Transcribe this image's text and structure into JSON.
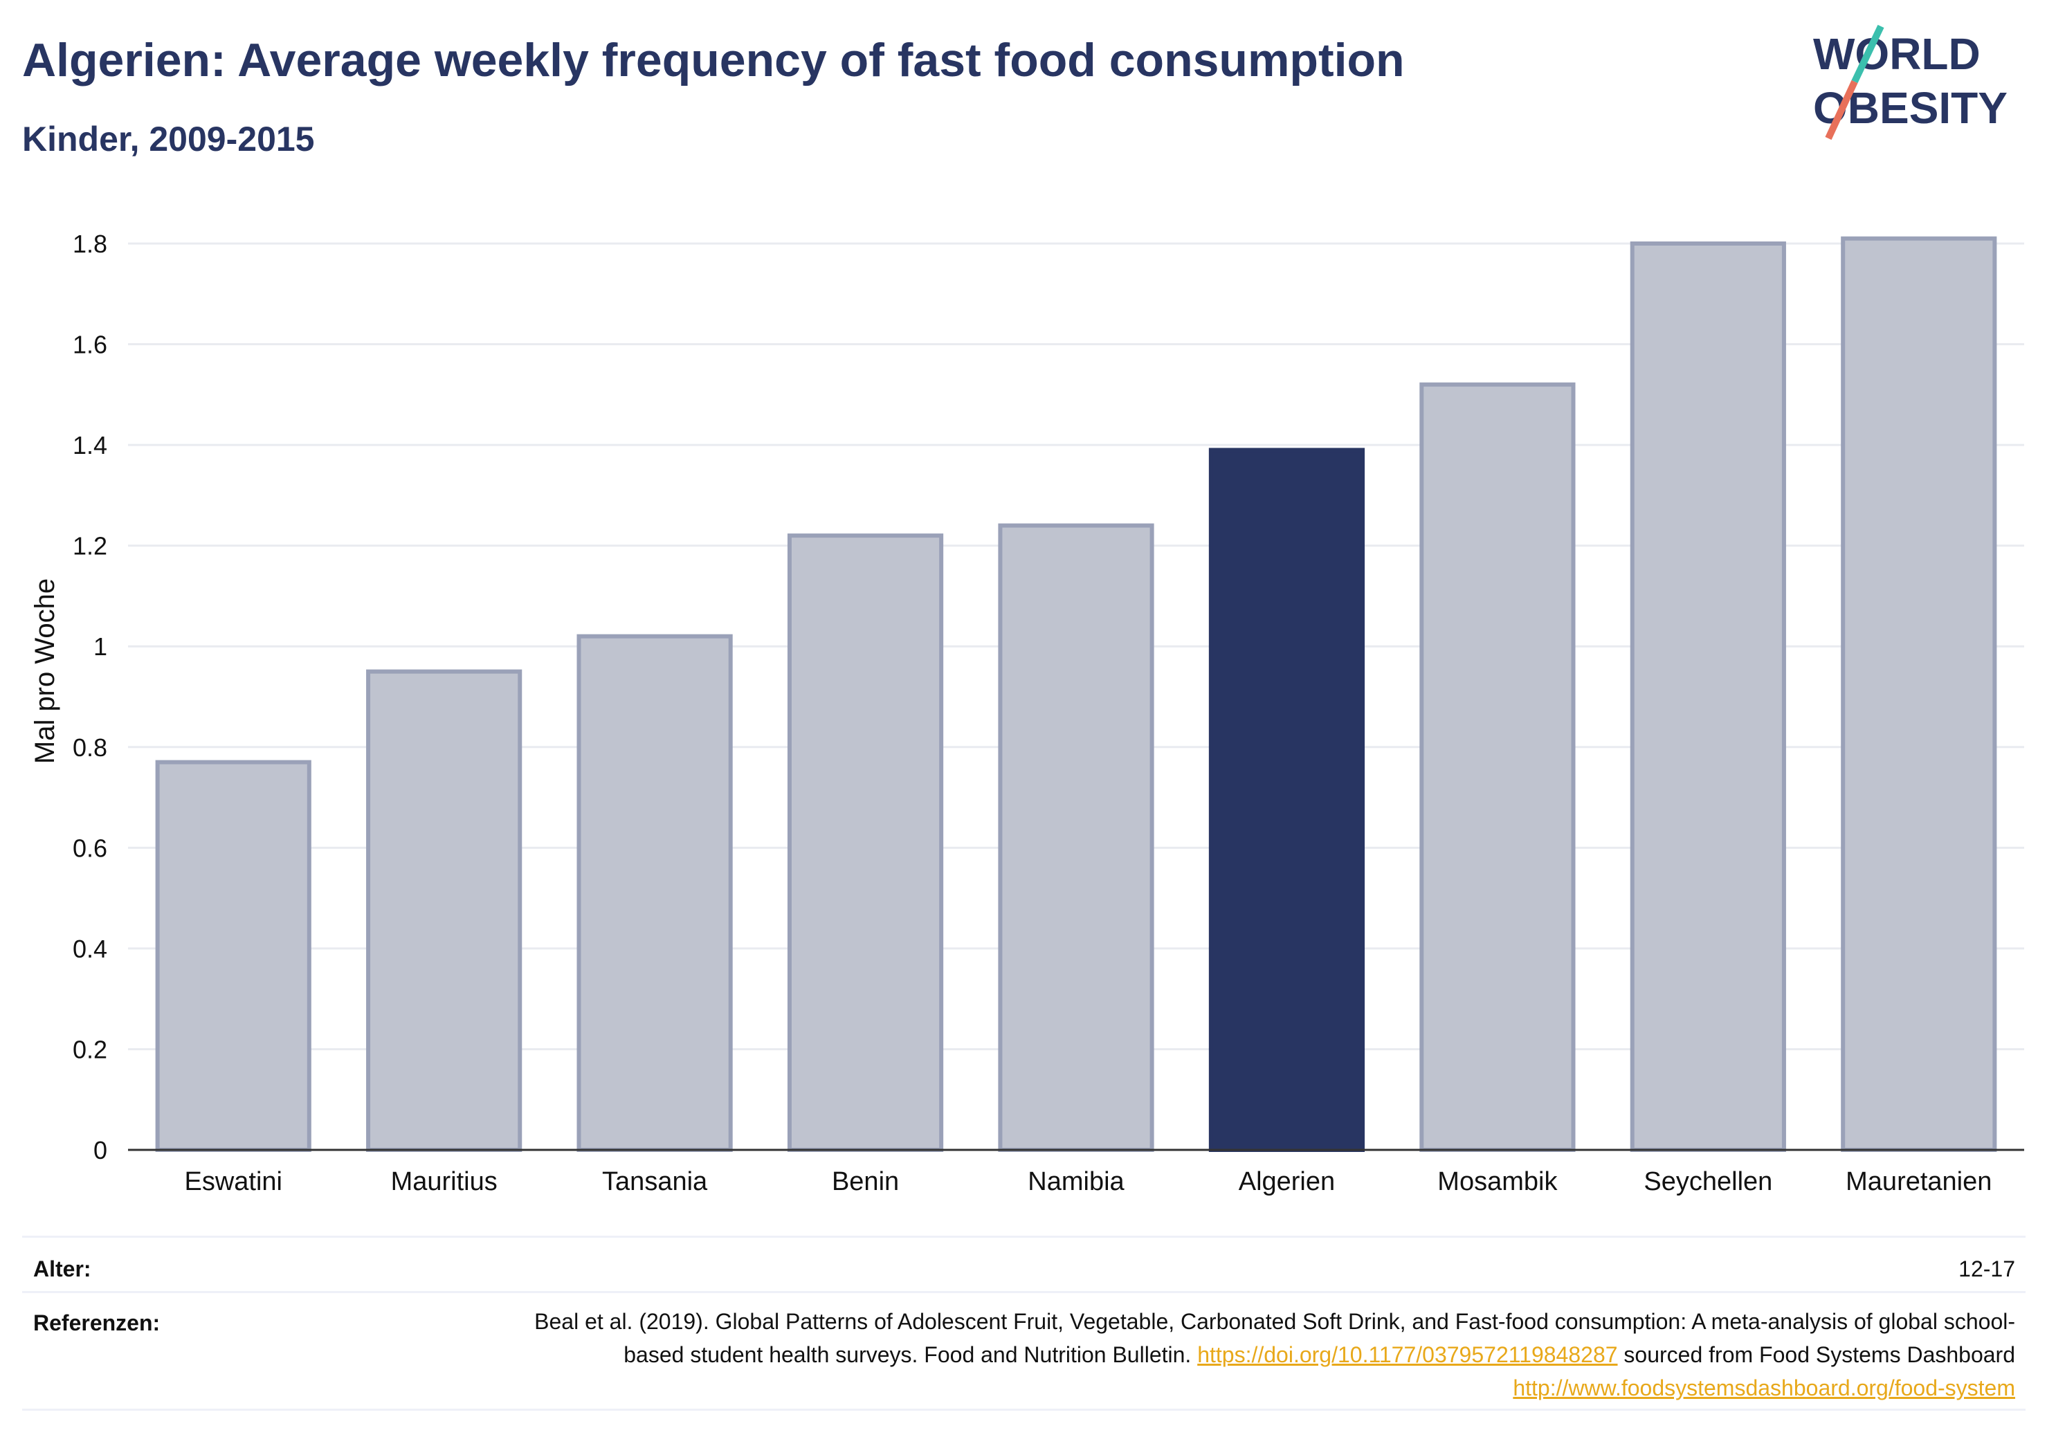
{
  "header": {
    "title": "Algerien: Average weekly frequency of fast food consumption",
    "subtitle": "Kinder, 2009-2015"
  },
  "logo": {
    "line1": "WORLD",
    "line2": "OBESITY"
  },
  "chart_data": {
    "type": "bar",
    "ylabel": "Mal pro Woche",
    "ylim": [
      0,
      1.8
    ],
    "yticks": [
      "0",
      "0.2",
      "0.4",
      "0.6",
      "0.8",
      "1",
      "1.2",
      "1.4",
      "1.6",
      "1.8"
    ],
    "categories": [
      "Eswatini",
      "Mauritius",
      "Tansania",
      "Benin",
      "Namibia",
      "Algerien",
      "Mosambik",
      "Seychellen",
      "Mauretanien"
    ],
    "values": [
      0.77,
      0.95,
      1.02,
      1.22,
      1.24,
      1.39,
      1.52,
      1.8,
      1.81
    ],
    "highlight": "Algerien",
    "colors": {
      "bar": "#bfc3cf",
      "bar_border": "#9aa1b8",
      "highlight": "#283562",
      "grid": "#e9ebf0",
      "axis": "#333333"
    },
    "grid": true
  },
  "meta": {
    "age_label": "Alter:",
    "age_value": "12-17",
    "ref_label": "Referenzen:",
    "ref_text1": "Beal et al. (2019). Global Patterns of Adolescent Fruit, Vegetable, Carbonated Soft Drink, and Fast-food consumption: A meta-analysis of global school-based student health surveys. Food and Nutrition Bulletin. ",
    "ref_link1": "https://doi.org/10.1177/0379572119848287",
    "ref_text2": " sourced from Food Systems Dashboard ",
    "ref_link2": "http://www.foodsystemsdashboard.org/food-system"
  }
}
